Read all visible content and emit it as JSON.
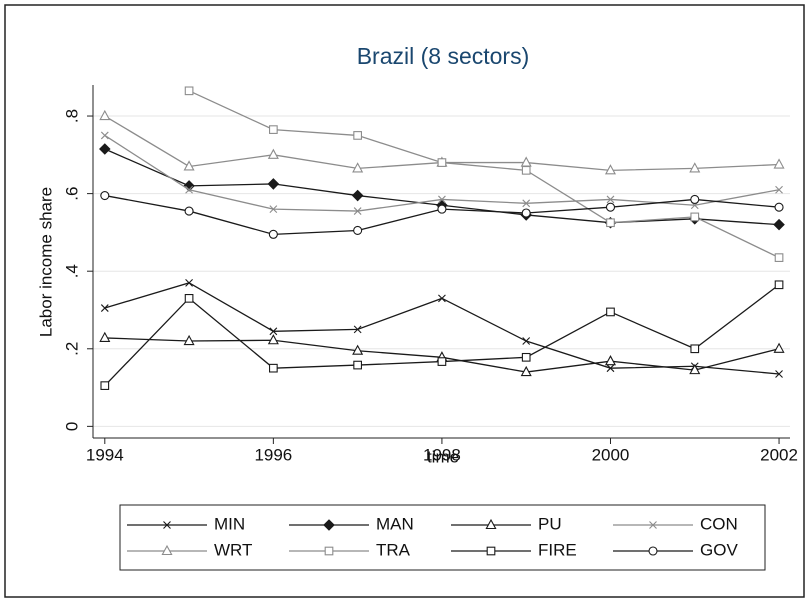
{
  "chart_data": {
    "type": "line",
    "title": "Brazil (8 sectors)",
    "xlabel": "time",
    "ylabel": "Labor income share",
    "x": [
      1994,
      1995,
      1996,
      1997,
      1998,
      1999,
      2000,
      2001,
      2002
    ],
    "xlim": [
      1993.86,
      2002.13
    ],
    "xticks": [
      1994,
      1996,
      1998,
      2000,
      2002
    ],
    "ylim": [
      -0.03,
      0.88
    ],
    "yticks": [
      0,
      {
        "value": 0.2,
        "label": ".2"
      },
      {
        "value": 0.4,
        "label": ".4"
      },
      {
        "value": 0.6,
        "label": ".6"
      },
      {
        "value": 0.8,
        "label": ".8"
      }
    ],
    "grid": true,
    "series": [
      {
        "name": "MIN",
        "color": "#1a1a1a",
        "marker": "x",
        "values": [
          0.305,
          0.37,
          0.245,
          0.25,
          0.33,
          0.22,
          0.15,
          0.155,
          0.135
        ]
      },
      {
        "name": "MAN",
        "color": "#1a1a1a",
        "marker": "diamond",
        "values": [
          0.715,
          0.62,
          0.625,
          0.595,
          0.57,
          0.545,
          0.525,
          0.535,
          0.52
        ]
      },
      {
        "name": "PU",
        "color": "#1a1a1a",
        "marker": "triangle",
        "values": [
          0.228,
          0.22,
          0.222,
          0.195,
          0.178,
          0.14,
          0.168,
          0.145,
          0.2
        ]
      },
      {
        "name": "CON",
        "color": "#8c8c8c",
        "marker": "x",
        "values": [
          0.75,
          0.61,
          0.56,
          0.555,
          0.585,
          0.575,
          0.585,
          0.57,
          0.61
        ]
      },
      {
        "name": "WRT",
        "color": "#8c8c8c",
        "marker": "triangle",
        "values": [
          0.8,
          0.67,
          0.7,
          0.665,
          0.68,
          0.68,
          0.66,
          0.665,
          0.675
        ]
      },
      {
        "name": "TRA",
        "color": "#8c8c8c",
        "marker": "square",
        "values": [
          null,
          0.865,
          0.765,
          0.75,
          0.68,
          0.66,
          0.525,
          0.54,
          0.435
        ]
      },
      {
        "name": "FIRE",
        "color": "#1a1a1a",
        "marker": "square",
        "values": [
          0.105,
          0.33,
          0.15,
          0.158,
          0.167,
          0.178,
          0.295,
          0.2,
          0.365
        ]
      },
      {
        "name": "GOV",
        "color": "#1a1a1a",
        "marker": "circle",
        "values": [
          0.595,
          0.555,
          0.495,
          0.505,
          0.56,
          0.55,
          0.565,
          0.585,
          0.565
        ]
      }
    ]
  }
}
